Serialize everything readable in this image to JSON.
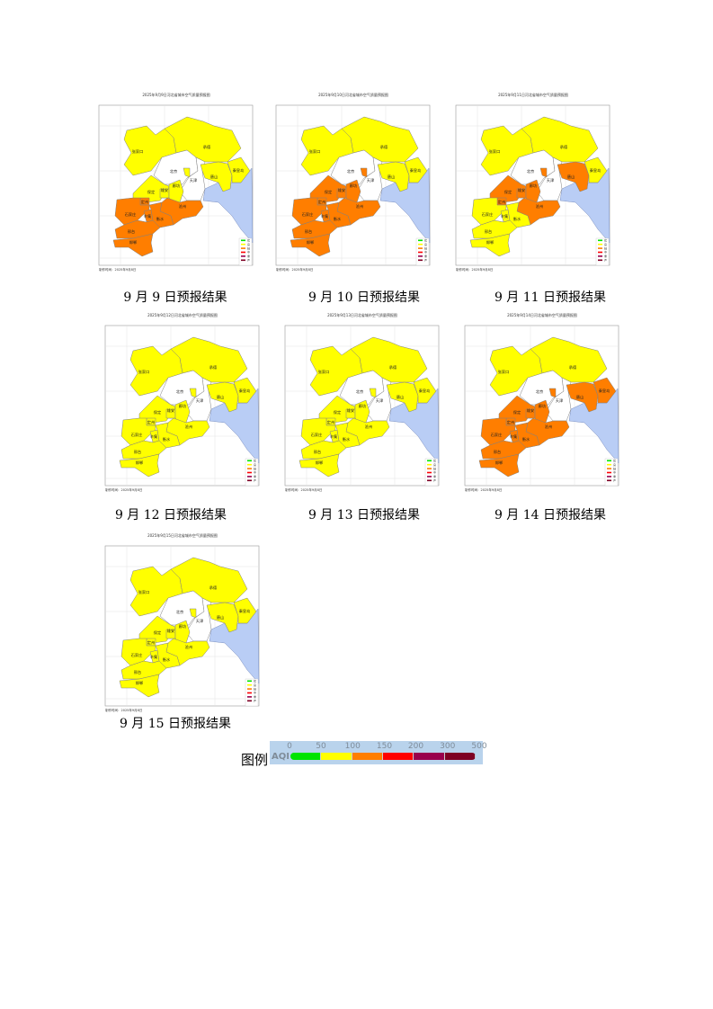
{
  "footer_label": "制作时间：2025年9月8日",
  "colors": {
    "good": "#ffff00",
    "light": "#ff7e00",
    "none": "#ffffff",
    "sea": "#b9cdf5",
    "border": "#808080"
  },
  "map_legend": [
    {
      "label": "优",
      "color": "#00e400"
    },
    {
      "label": "良",
      "color": "#ffff00"
    },
    {
      "label": "轻",
      "color": "#ff7e00"
    },
    {
      "label": "中",
      "color": "#ff0000"
    },
    {
      "label": "重",
      "color": "#99004c"
    },
    {
      "label": "严",
      "color": "#7e0023"
    }
  ],
  "maps": [
    {
      "title": "2025年9月9日河北省城市空气质量预报图",
      "caption": "9 月 9 日预报结果",
      "levels": {
        "张家口": "good",
        "承德": "good",
        "秦皇岛": "good",
        "唐山": "good",
        "廊坊": "good",
        "廊坊北": "good",
        "保定": "good",
        "雄安": "good",
        "定州": "light",
        "石家庄": "light",
        "辛集": "light",
        "衡水": "light",
        "沧州": "light",
        "邢台": "light",
        "邯郸": "light"
      }
    },
    {
      "title": "2025年9月10日河北省城市空气质量预报图",
      "caption": "9 月 10 日预报结果",
      "levels": {
        "张家口": "good",
        "承德": "good",
        "秦皇岛": "good",
        "唐山": "good",
        "廊坊": "light",
        "廊坊北": "light",
        "保定": "light",
        "雄安": "light",
        "定州": "light",
        "石家庄": "light",
        "辛集": "light",
        "衡水": "light",
        "沧州": "light",
        "邢台": "light",
        "邯郸": "light"
      }
    },
    {
      "title": "2025年9月11日河北省城市空气质量预报图",
      "caption": "9 月 11 日预报结果",
      "levels": {
        "张家口": "good",
        "承德": "good",
        "秦皇岛": "good",
        "唐山": "light",
        "廊坊": "light",
        "廊坊北": "light",
        "保定": "light",
        "雄安": "light",
        "定州": "light",
        "石家庄": "good",
        "辛集": "good",
        "衡水": "good",
        "沧州": "light",
        "邢台": "good",
        "邯郸": "good"
      }
    },
    {
      "title": "2025年9月12日河北省城市空气质量预报图",
      "caption": "9 月 12 日预报结果",
      "levels": {
        "张家口": "good",
        "承德": "good",
        "秦皇岛": "good",
        "唐山": "good",
        "廊坊": "good",
        "廊坊北": "good",
        "保定": "good",
        "雄安": "good",
        "定州": "good",
        "石家庄": "good",
        "辛集": "good",
        "衡水": "good",
        "沧州": "good",
        "邢台": "good",
        "邯郸": "good"
      }
    },
    {
      "title": "2025年9月13日河北省城市空气质量预报图",
      "caption": "9 月 13 日预报结果",
      "levels": {
        "张家口": "good",
        "承德": "good",
        "秦皇岛": "good",
        "唐山": "good",
        "廊坊": "good",
        "廊坊北": "good",
        "保定": "good",
        "雄安": "good",
        "定州": "good",
        "石家庄": "good",
        "辛集": "good",
        "衡水": "good",
        "沧州": "good",
        "邢台": "good",
        "邯郸": "good"
      }
    },
    {
      "title": "2025年9月14日河北省城市空气质量预报图",
      "caption": "9 月 14 日预报结果",
      "levels": {
        "张家口": "good",
        "承德": "good",
        "秦皇岛": "light",
        "唐山": "light",
        "廊坊": "light",
        "廊坊北": "light",
        "保定": "light",
        "雄安": "light",
        "定州": "light",
        "石家庄": "light",
        "辛集": "light",
        "衡水": "light",
        "沧州": "light",
        "邢台": "light",
        "邯郸": "light"
      }
    },
    {
      "title": "2025年9月15日河北省城市空气质量预报图",
      "caption": "9 月  15 日预报结果",
      "levels": {
        "张家口": "good",
        "承德": "good",
        "秦皇岛": "good",
        "唐山": "good",
        "廊坊": "good",
        "廊坊北": "good",
        "保定": "good",
        "雄安": "good",
        "定州": "good",
        "石家庄": "good",
        "辛集": "good",
        "衡水": "good",
        "沧州": "good",
        "邢台": "good",
        "邯郸": "good"
      }
    }
  ],
  "legend": {
    "label": "图例",
    "axis_label": "AQI",
    "ticks": [
      "0",
      "50",
      "100",
      "150",
      "200",
      "300",
      "500"
    ],
    "segments": [
      "#00e400",
      "#ffff00",
      "#ff7e00",
      "#ff0000",
      "#99004c",
      "#7e0023"
    ]
  }
}
